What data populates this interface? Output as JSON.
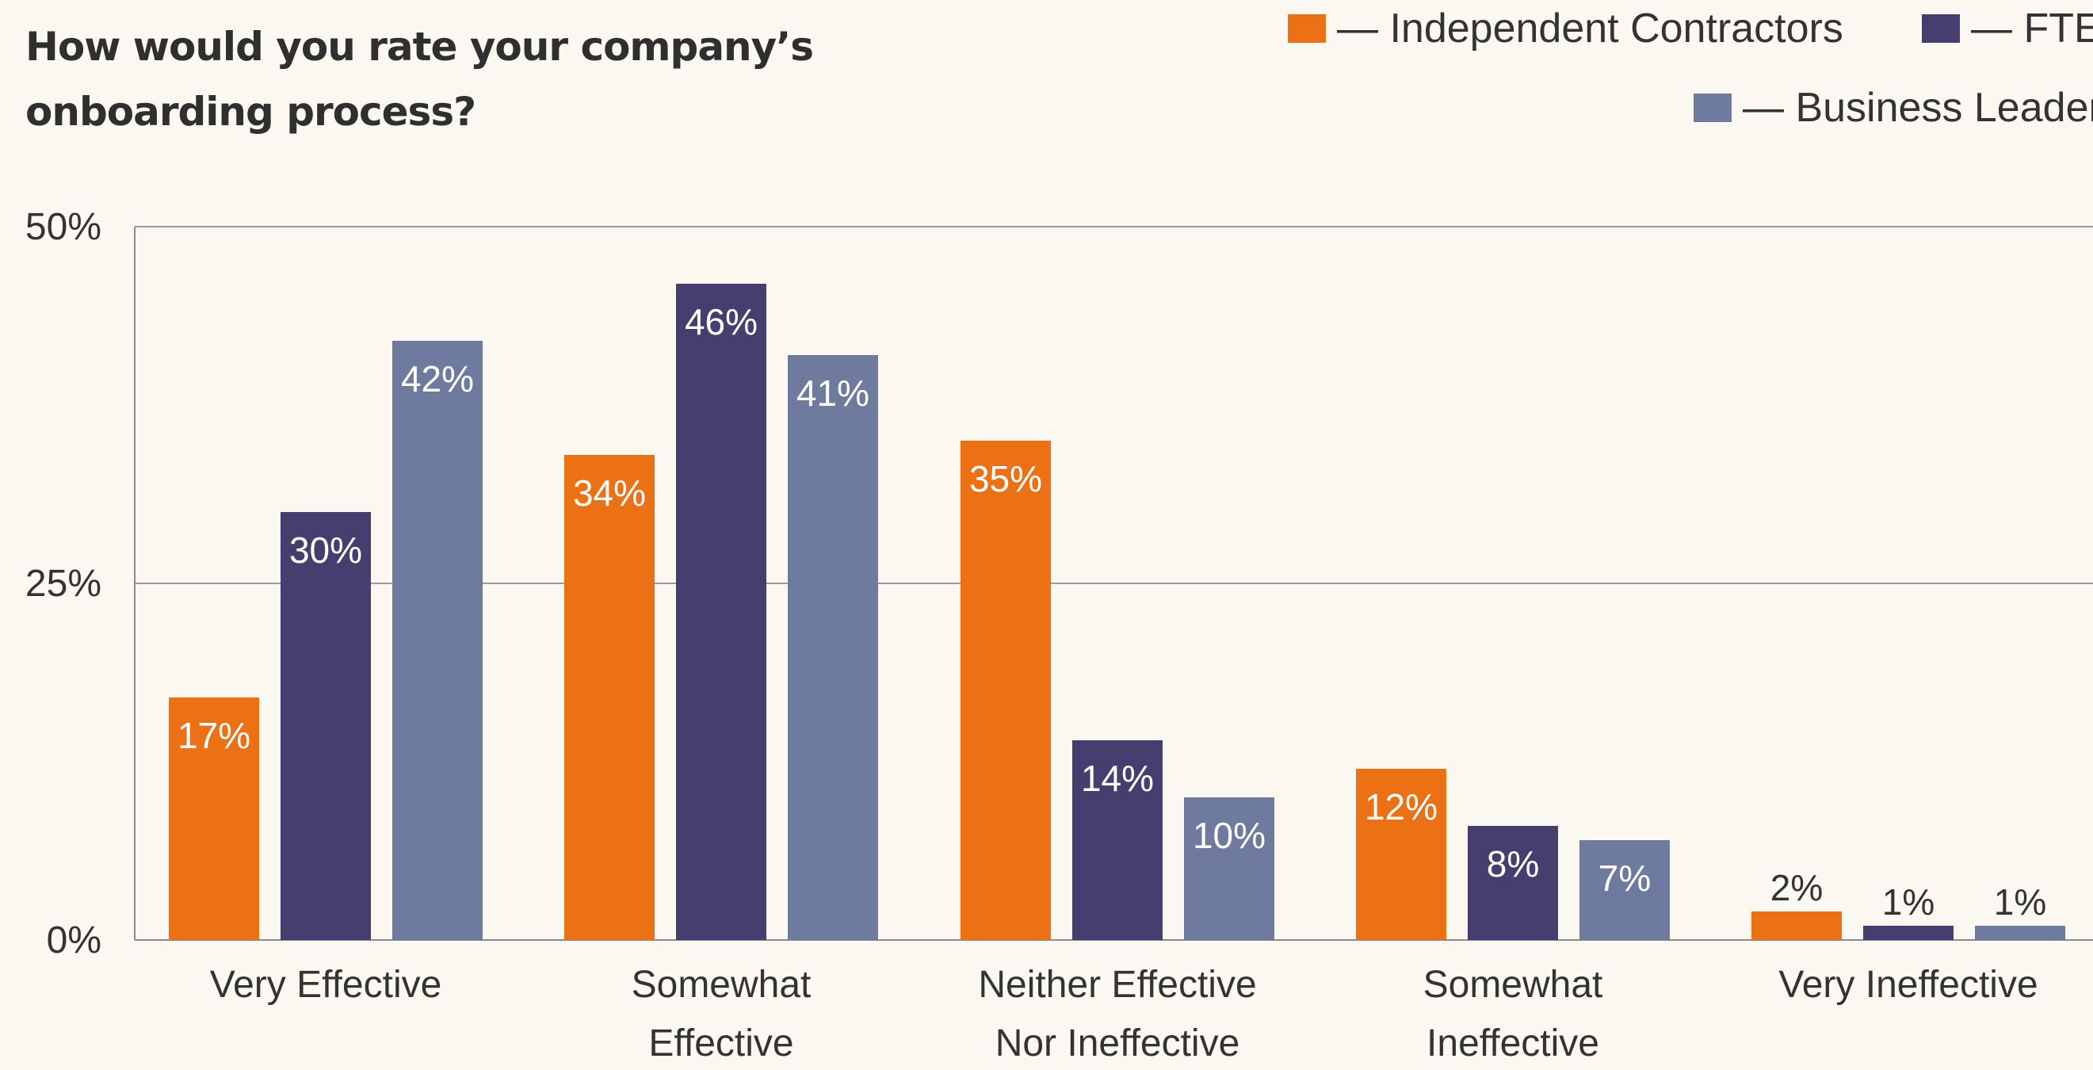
{
  "chart_data": {
    "type": "bar",
    "title": "How would you rate your company’s onboarding process?",
    "categories": [
      [
        "Very Effective"
      ],
      [
        "Somewhat",
        "Effective"
      ],
      [
        "Neither Effective",
        "Nor Ineffective"
      ],
      [
        "Somewhat",
        "Ineffective"
      ],
      [
        "Very Ineffective"
      ]
    ],
    "series": [
      {
        "name": "— Independent Contractors",
        "color": "#ec7014",
        "values": [
          17,
          34,
          35,
          12,
          2
        ],
        "labels": [
          "17%",
          "34%",
          "35%",
          "12%",
          "2%"
        ]
      },
      {
        "name": "— FTEs",
        "color": "#473e70",
        "values": [
          30,
          46,
          14,
          8,
          1
        ],
        "labels": [
          "30%",
          "46%",
          "14%",
          "8%",
          "1%"
        ]
      },
      {
        "name": "— Business Leaders",
        "color": "#6f7b9e",
        "values": [
          42,
          41,
          10,
          7,
          1
        ],
        "labels": [
          "42%",
          "41%",
          "10%",
          "7%",
          "1%"
        ]
      }
    ],
    "yticks": [
      {
        "value": 0,
        "label": "0%"
      },
      {
        "value": 25,
        "label": "25%"
      },
      {
        "value": 50,
        "label": "50%"
      }
    ],
    "ylim": [
      0,
      50
    ],
    "grid": true,
    "legend_position": "top-right"
  }
}
